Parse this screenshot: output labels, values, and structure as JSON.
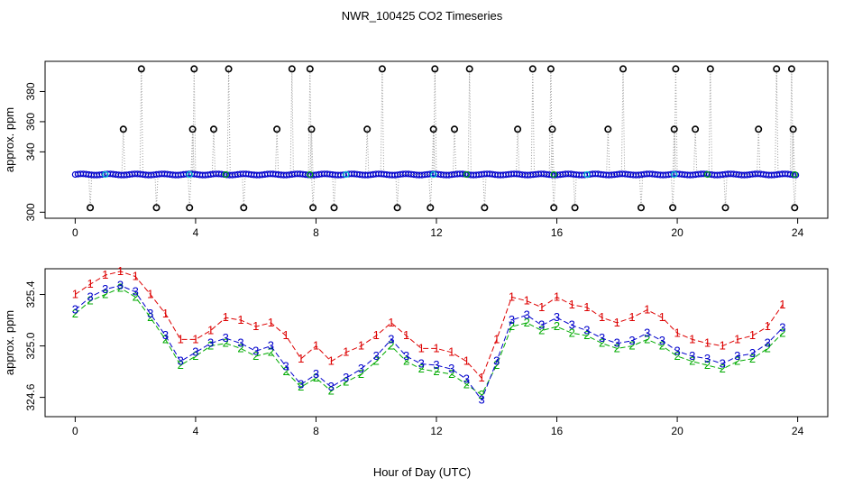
{
  "figure": {
    "title": "NWR_100425  CO2 Timeseries",
    "xlabel": "Hour of Day (UTC)"
  },
  "chart_data": [
    {
      "type": "scatter",
      "title": "NWR_100425  CO2 Timeseries",
      "xlabel": "",
      "ylabel": "approx. ppm",
      "xlim": [
        -1,
        25
      ],
      "ylim": [
        296,
        400
      ],
      "xticks": [
        "0",
        "4",
        "8",
        "12",
        "16",
        "20",
        "24"
      ],
      "yticks": [
        "300",
        "340",
        "360",
        "380"
      ],
      "baseline_ppm": 325,
      "marker_style": "open circles with dotted connecting line; spikes at 303, 355 and 395 ppm",
      "spike_points": [
        {
          "x": 0.5,
          "y": 303
        },
        {
          "x": 1.6,
          "y": 355
        },
        {
          "x": 2.2,
          "y": 395
        },
        {
          "x": 2.7,
          "y": 303
        },
        {
          "x": 3.8,
          "y": 303
        },
        {
          "x": 3.9,
          "y": 355
        },
        {
          "x": 3.95,
          "y": 395
        },
        {
          "x": 4.6,
          "y": 355
        },
        {
          "x": 5.1,
          "y": 395
        },
        {
          "x": 5.6,
          "y": 303
        },
        {
          "x": 6.7,
          "y": 355
        },
        {
          "x": 7.2,
          "y": 395
        },
        {
          "x": 7.8,
          "y": 395
        },
        {
          "x": 7.85,
          "y": 355
        },
        {
          "x": 7.9,
          "y": 303
        },
        {
          "x": 8.6,
          "y": 303
        },
        {
          "x": 9.7,
          "y": 355
        },
        {
          "x": 10.2,
          "y": 395
        },
        {
          "x": 10.7,
          "y": 303
        },
        {
          "x": 11.8,
          "y": 303
        },
        {
          "x": 11.9,
          "y": 355
        },
        {
          "x": 11.95,
          "y": 395
        },
        {
          "x": 12.6,
          "y": 355
        },
        {
          "x": 13.1,
          "y": 395
        },
        {
          "x": 13.6,
          "y": 303
        },
        {
          "x": 14.7,
          "y": 355
        },
        {
          "x": 15.2,
          "y": 395
        },
        {
          "x": 15.8,
          "y": 395
        },
        {
          "x": 15.85,
          "y": 355
        },
        {
          "x": 15.9,
          "y": 303
        },
        {
          "x": 16.6,
          "y": 303
        },
        {
          "x": 17.7,
          "y": 355
        },
        {
          "x": 18.2,
          "y": 395
        },
        {
          "x": 18.8,
          "y": 303
        },
        {
          "x": 19.85,
          "y": 303
        },
        {
          "x": 19.9,
          "y": 355
        },
        {
          "x": 19.95,
          "y": 395
        },
        {
          "x": 20.6,
          "y": 355
        },
        {
          "x": 21.1,
          "y": 395
        },
        {
          "x": 21.6,
          "y": 303
        },
        {
          "x": 22.7,
          "y": 355
        },
        {
          "x": 23.3,
          "y": 395
        },
        {
          "x": 23.8,
          "y": 395
        },
        {
          "x": 23.85,
          "y": 355
        },
        {
          "x": 23.9,
          "y": 303
        }
      ],
      "colors": {
        "markers": "#000000",
        "overlay": "#0000cc",
        "overlay2": "#00cccc",
        "accent_green": "#00aa00",
        "connector": "#999999"
      }
    },
    {
      "type": "line",
      "title": "",
      "xlabel": "Hour of Day (UTC)",
      "ylabel": "approx. ppm",
      "xlim": [
        -1,
        25
      ],
      "ylim": [
        324.45,
        325.6
      ],
      "xticks": [
        "0",
        "4",
        "8",
        "12",
        "16",
        "20",
        "24"
      ],
      "yticks": [
        "324.6",
        "325.0",
        "325.4"
      ],
      "series_markers": [
        "1",
        "2",
        "3"
      ],
      "x": [
        0,
        0.5,
        1,
        1.5,
        2,
        2.5,
        3,
        3.5,
        4,
        4.5,
        5,
        5.5,
        6,
        6.5,
        7,
        7.5,
        8,
        8.5,
        9,
        9.5,
        10,
        10.5,
        11,
        11.5,
        12,
        12.5,
        13,
        13.5,
        14,
        14.5,
        15,
        15.5,
        16,
        16.5,
        17,
        17.5,
        18,
        18.5,
        19,
        19.5,
        20,
        20.5,
        21,
        21.5,
        22,
        22.5,
        23,
        23.5
      ],
      "series": [
        {
          "name": "1",
          "color": "#dd0000",
          "values": [
            325.4,
            325.48,
            325.55,
            325.58,
            325.54,
            325.4,
            325.25,
            325.05,
            325.05,
            325.12,
            325.22,
            325.2,
            325.15,
            325.18,
            325.08,
            324.9,
            325.0,
            324.88,
            324.95,
            325.0,
            325.08,
            325.18,
            325.08,
            324.98,
            324.98,
            324.95,
            324.88,
            324.75,
            325.05,
            325.38,
            325.35,
            325.3,
            325.38,
            325.32,
            325.3,
            325.22,
            325.18,
            325.22,
            325.28,
            325.22,
            325.1,
            325.05,
            325.02,
            325.0,
            325.05,
            325.08,
            325.15,
            325.32
          ]
        },
        {
          "name": "2",
          "color": "#00aa00",
          "values": [
            325.25,
            325.35,
            325.4,
            325.45,
            325.38,
            325.22,
            325.05,
            324.85,
            324.92,
            325.0,
            325.02,
            324.98,
            324.92,
            324.95,
            324.8,
            324.68,
            324.75,
            324.65,
            324.72,
            324.78,
            324.88,
            325.0,
            324.88,
            324.82,
            324.8,
            324.78,
            324.7,
            324.62,
            324.85,
            325.15,
            325.18,
            325.12,
            325.15,
            325.1,
            325.08,
            325.02,
            324.98,
            325.0,
            325.05,
            325.0,
            324.92,
            324.88,
            324.85,
            324.82,
            324.88,
            324.9,
            324.98,
            325.1
          ]
        },
        {
          "name": "3",
          "color": "#0000cc",
          "values": [
            325.28,
            325.38,
            325.44,
            325.47,
            325.42,
            325.25,
            325.08,
            324.88,
            324.95,
            325.02,
            325.06,
            325.02,
            324.96,
            325.0,
            324.84,
            324.7,
            324.78,
            324.68,
            324.75,
            324.82,
            324.92,
            325.05,
            324.92,
            324.86,
            324.85,
            324.82,
            324.74,
            324.58,
            324.88,
            325.2,
            325.24,
            325.16,
            325.22,
            325.16,
            325.12,
            325.06,
            325.02,
            325.04,
            325.1,
            325.04,
            324.96,
            324.92,
            324.9,
            324.86,
            324.92,
            324.94,
            325.02,
            325.14
          ]
        }
      ]
    }
  ]
}
